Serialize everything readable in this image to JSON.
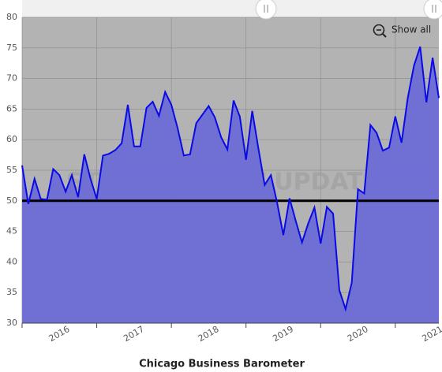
{
  "chart_data": {
    "type": "area-line",
    "title": "Chicago Business Barometer",
    "watermark": "STEEL MARKET UPDATE",
    "button": "Show all",
    "series": [
      {
        "name": "Chicago Business Barometer",
        "color": "#0a0ae6",
        "fill": "#6b6bd6",
        "values": [
          55.8,
          49.5,
          53.6,
          50.3,
          50.2,
          55.2,
          54.2,
          51.5,
          54.2,
          50.6,
          57.6,
          53.6,
          50.3,
          57.4,
          57.7,
          58.3,
          59.4,
          65.7,
          58.9,
          58.9,
          65.2,
          66.2,
          63.9,
          67.8,
          65.7,
          61.9,
          57.4,
          57.6,
          62.7,
          64.1,
          65.5,
          63.6,
          60.4,
          58.4,
          66.4,
          63.8,
          56.7,
          64.7,
          58.5,
          52.6,
          54.2,
          49.7,
          44.4,
          50.4,
          46.7,
          43.2,
          46.3,
          48.9,
          43.0,
          49.0,
          47.9,
          35.4,
          32.3,
          36.6,
          51.9,
          51.2,
          62.4,
          61.1,
          58.2,
          58.7,
          63.8,
          59.5,
          66.8,
          72.1,
          75.2,
          66.1,
          73.4,
          66.8
        ]
      }
    ],
    "reference_line": 50,
    "xlim": [
      0,
      67
    ],
    "xticks": [
      {
        "value": 0,
        "label": "2016"
      },
      {
        "value": 12,
        "label": "2017"
      },
      {
        "value": 24,
        "label": "2018"
      },
      {
        "value": 36,
        "label": "2019"
      },
      {
        "value": 48,
        "label": "2020"
      },
      {
        "value": 60,
        "label": "2021"
      }
    ],
    "ylim": [
      30,
      80
    ],
    "yticks": [
      30,
      35,
      40,
      45,
      50,
      55,
      60,
      65,
      70,
      75,
      80
    ],
    "grid": true
  }
}
